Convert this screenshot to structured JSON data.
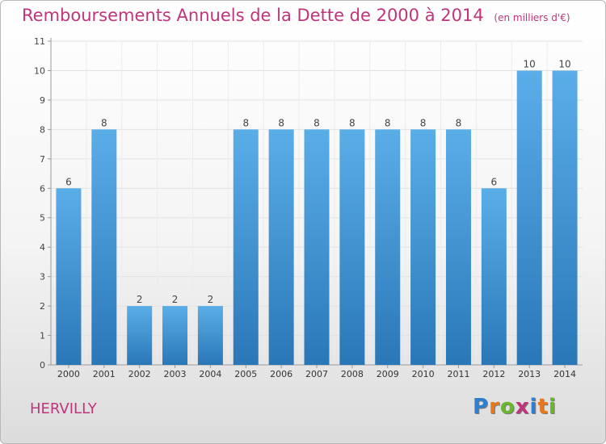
{
  "header": {
    "title": "Remboursements Annuels de la Dette de 2000 à 2014",
    "unit": "(en milliers d'€)"
  },
  "footer": {
    "commune": "HERVILLY",
    "logo": "Proxiti"
  },
  "colors": {
    "title": "#c0357a",
    "bar_top": "#5aaee8",
    "bar_bottom": "#2a77b8",
    "logo_letters": [
      "#2f7fd0",
      "#e8791a",
      "#6cb52e",
      "#c0357a",
      "#2f7fd0",
      "#e8791a",
      "#6cb52e"
    ]
  },
  "chart_data": {
    "type": "bar",
    "title": "Remboursements Annuels de la Dette de 2000 à 2014",
    "subtitle": "(en milliers d'€)",
    "xlabel": "",
    "ylabel": "",
    "categories": [
      "2000",
      "2001",
      "2002",
      "2003",
      "2004",
      "2005",
      "2006",
      "2007",
      "2008",
      "2009",
      "2010",
      "2011",
      "2012",
      "2013",
      "2014"
    ],
    "values": [
      6,
      8,
      2,
      2,
      2,
      8,
      8,
      8,
      8,
      8,
      8,
      8,
      6,
      10,
      10
    ],
    "data_labels": [
      "6",
      "8",
      "2",
      "2",
      "2",
      "8",
      "8",
      "8",
      "8",
      "8",
      "8",
      "8",
      "6",
      "10",
      "10"
    ],
    "ylim": [
      0,
      11
    ],
    "yticks": [
      0,
      1,
      2,
      3,
      4,
      5,
      6,
      7,
      8,
      9,
      10,
      11
    ],
    "grid": true,
    "legend": "none"
  }
}
